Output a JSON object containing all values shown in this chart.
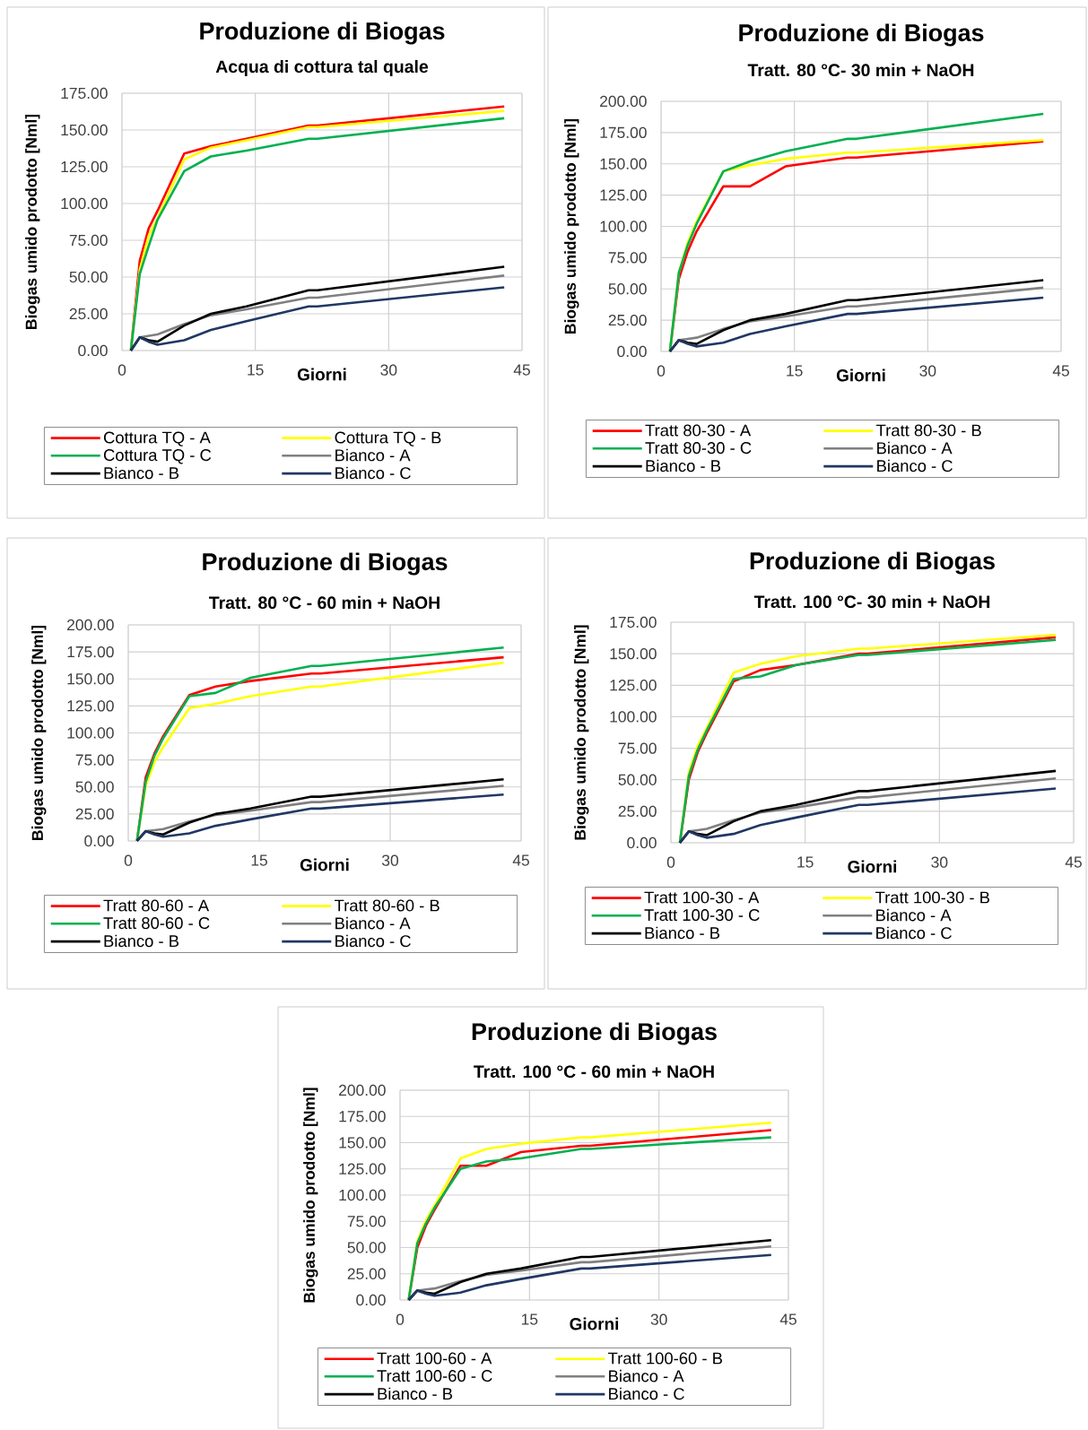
{
  "chart_data": [
    {
      "type": "line",
      "title": "Produzione di Biogas",
      "subtitle": "Acqua di cottura tal quale",
      "xlabel": "Giorni",
      "ylabel": "Biogas umido prodotto [Nml]",
      "x": [
        1,
        2,
        3,
        4,
        7,
        10,
        14,
        21,
        22,
        43
      ],
      "xlim": [
        0,
        45
      ],
      "xticks": [
        0,
        15,
        30,
        45
      ],
      "ylim": [
        0,
        175
      ],
      "yticks": [
        {
          "value": 0,
          "label": "0.00"
        },
        {
          "value": 25,
          "label": "25.00"
        },
        {
          "value": 50,
          "label": "50.00"
        },
        {
          "value": 75,
          "label": "75.00"
        },
        {
          "value": 100,
          "label": "100.00"
        },
        {
          "value": 125,
          "label": "125.00"
        },
        {
          "value": 150,
          "label": "150.00"
        },
        {
          "value": 175,
          "label": "175.00"
        }
      ],
      "grid": true,
      "legend": "bottom",
      "series": [
        {
          "name": "Cottura TQ - A",
          "color": "#ff0000",
          "values": [
            0,
            61,
            83,
            95,
            134,
            139,
            144,
            153,
            153,
            166
          ]
        },
        {
          "name": "Cottura TQ - B",
          "color": "#ffff00",
          "values": [
            0,
            55,
            78,
            90,
            130,
            138,
            143,
            152,
            152,
            163
          ]
        },
        {
          "name": "Cottura TQ - C",
          "color": "#00b050",
          "values": [
            0,
            52,
            71,
            89,
            122,
            132,
            136,
            144,
            144,
            158
          ]
        },
        {
          "name": "Bianco - A",
          "color": "#808080",
          "values": [
            0,
            9,
            10,
            11,
            18,
            24,
            28,
            36,
            36,
            51
          ]
        },
        {
          "name": "Bianco - B",
          "color": "#000000",
          "values": [
            0,
            9,
            7,
            6,
            17,
            25,
            30,
            41,
            41,
            57
          ]
        },
        {
          "name": "Bianco - C",
          "color": "#203864",
          "values": [
            0,
            9,
            6,
            4,
            7,
            14,
            20,
            30,
            30,
            43
          ]
        }
      ]
    },
    {
      "type": "line",
      "title": "Produzione di Biogas",
      "subtitle": "Tratt. 80 °C- 30 min + NaOH",
      "xlabel": "Giorni",
      "ylabel": "Biogas umido prodotto [Nml]",
      "x": [
        1,
        2,
        3,
        4,
        7,
        10,
        14,
        21,
        22,
        43
      ],
      "xlim": [
        0,
        45
      ],
      "xticks": [
        0,
        15,
        30,
        45
      ],
      "ylim": [
        0,
        200
      ],
      "yticks": [
        {
          "value": 0,
          "label": "0.00"
        },
        {
          "value": 25,
          "label": "25.00"
        },
        {
          "value": 50,
          "label": "50.00"
        },
        {
          "value": 75,
          "label": "75.00"
        },
        {
          "value": 100,
          "label": "100.00"
        },
        {
          "value": 125,
          "label": "125.00"
        },
        {
          "value": 150,
          "label": "150.00"
        },
        {
          "value": 175,
          "label": "175.00"
        },
        {
          "value": 200,
          "label": "200.00"
        }
      ],
      "grid": true,
      "legend": "bottom",
      "series": [
        {
          "name": "Tratt 80-30 - A",
          "color": "#ff0000",
          "values": [
            0,
            58,
            80,
            96,
            132,
            132,
            148,
            155,
            155,
            168
          ]
        },
        {
          "name": "Tratt 80-30 - B",
          "color": "#ffff00",
          "values": [
            0,
            63,
            87,
            104,
            144,
            149,
            154,
            159,
            159,
            169
          ]
        },
        {
          "name": "Tratt 80-30 - C",
          "color": "#00b050",
          "values": [
            0,
            63,
            85,
            102,
            144,
            152,
            160,
            170,
            170,
            190
          ]
        },
        {
          "name": "Bianco - A",
          "color": "#808080",
          "values": [
            0,
            9,
            10,
            11,
            18,
            24,
            28,
            36,
            36,
            51
          ]
        },
        {
          "name": "Bianco - B",
          "color": "#000000",
          "values": [
            0,
            9,
            7,
            6,
            17,
            25,
            30,
            41,
            41,
            57
          ]
        },
        {
          "name": "Bianco - C",
          "color": "#203864",
          "values": [
            0,
            9,
            6,
            4,
            7,
            14,
            20,
            30,
            30,
            43
          ]
        }
      ]
    },
    {
      "type": "line",
      "title": "Produzione di Biogas",
      "subtitle": "Tratt. 80 °C - 60 min + NaOH",
      "xlabel": "Giorni",
      "ylabel": "Biogas umido prodotto [Nml]",
      "x": [
        1,
        2,
        3,
        4,
        7,
        10,
        14,
        21,
        22,
        43
      ],
      "xlim": [
        0,
        45
      ],
      "xticks": [
        0,
        15,
        30,
        45
      ],
      "ylim": [
        0,
        200
      ],
      "yticks": [
        {
          "value": 0,
          "label": "0.00"
        },
        {
          "value": 25,
          "label": "25.00"
        },
        {
          "value": 50,
          "label": "50.00"
        },
        {
          "value": 75,
          "label": "75.00"
        },
        {
          "value": 100,
          "label": "100.00"
        },
        {
          "value": 125,
          "label": "125.00"
        },
        {
          "value": 150,
          "label": "150.00"
        },
        {
          "value": 175,
          "label": "175.00"
        },
        {
          "value": 200,
          "label": "200.00"
        }
      ],
      "grid": true,
      "legend": "bottom",
      "series": [
        {
          "name": "Tratt 80-60 - A",
          "color": "#ff0000",
          "values": [
            0,
            59,
            81,
            97,
            135,
            143,
            148,
            155,
            155,
            170
          ]
        },
        {
          "name": "Tratt 80-60 - B",
          "color": "#ffff00",
          "values": [
            0,
            51,
            73,
            87,
            123,
            127,
            134,
            143,
            143,
            165
          ]
        },
        {
          "name": "Tratt 80-60 - C",
          "color": "#00b050",
          "values": [
            0,
            55,
            79,
            95,
            134,
            137,
            151,
            162,
            162,
            179
          ]
        },
        {
          "name": "Bianco - A",
          "color": "#808080",
          "values": [
            0,
            9,
            10,
            11,
            18,
            24,
            28,
            36,
            36,
            51
          ]
        },
        {
          "name": "Bianco - B",
          "color": "#000000",
          "values": [
            0,
            9,
            7,
            6,
            17,
            25,
            30,
            41,
            41,
            57
          ]
        },
        {
          "name": "Bianco - C",
          "color": "#203864",
          "values": [
            0,
            9,
            6,
            4,
            7,
            14,
            20,
            30,
            30,
            43
          ]
        }
      ]
    },
    {
      "type": "line",
      "title": "Produzione di Biogas",
      "subtitle": "Tratt. 100 °C- 30 min + NaOH",
      "xlabel": "Giorni",
      "ylabel": "Biogas umido prodotto [Nml]",
      "x": [
        1,
        2,
        3,
        4,
        7,
        10,
        14,
        21,
        22,
        43
      ],
      "xlim": [
        0,
        45
      ],
      "xticks": [
        0,
        15,
        30,
        45
      ],
      "ylim": [
        0,
        175
      ],
      "yticks": [
        {
          "value": 0,
          "label": "0.00"
        },
        {
          "value": 25,
          "label": "25.00"
        },
        {
          "value": 50,
          "label": "50.00"
        },
        {
          "value": 75,
          "label": "75.00"
        },
        {
          "value": 100,
          "label": "100.00"
        },
        {
          "value": 125,
          "label": "125.00"
        },
        {
          "value": 150,
          "label": "150.00"
        },
        {
          "value": 175,
          "label": "175.00"
        }
      ],
      "grid": true,
      "legend": "bottom",
      "series": [
        {
          "name": "Tratt 100-30 - A",
          "color": "#ff0000",
          "values": [
            0,
            50,
            72,
            87,
            128,
            137,
            141,
            150,
            150,
            163
          ]
        },
        {
          "name": "Tratt 100-30 - B",
          "color": "#ffff00",
          "values": [
            0,
            56,
            77,
            91,
            135,
            142,
            148,
            154,
            154,
            165
          ]
        },
        {
          "name": "Tratt 100-30 - C",
          "color": "#00b050",
          "values": [
            0,
            53,
            74,
            89,
            130,
            132,
            141,
            149,
            149,
            161
          ]
        },
        {
          "name": "Bianco - A",
          "color": "#808080",
          "values": [
            0,
            9,
            10,
            11,
            18,
            24,
            28,
            36,
            36,
            51
          ]
        },
        {
          "name": "Bianco - B",
          "color": "#000000",
          "values": [
            0,
            9,
            7,
            6,
            17,
            25,
            30,
            41,
            41,
            57
          ]
        },
        {
          "name": "Bianco - C",
          "color": "#203864",
          "values": [
            0,
            9,
            6,
            4,
            7,
            14,
            20,
            30,
            30,
            43
          ]
        }
      ]
    },
    {
      "type": "line",
      "title": "Produzione di Biogas",
      "subtitle": "Tratt. 100 °C - 60 min + NaOH",
      "xlabel": "Giorni",
      "ylabel": "Biogas umido prodotto [Nml]",
      "x": [
        1,
        2,
        3,
        4,
        7,
        10,
        14,
        21,
        22,
        43
      ],
      "xlim": [
        0,
        45
      ],
      "xticks": [
        0,
        15,
        30,
        45
      ],
      "ylim": [
        0,
        200
      ],
      "yticks": [
        {
          "value": 0,
          "label": "0.00"
        },
        {
          "value": 25,
          "label": "25.00"
        },
        {
          "value": 50,
          "label": "50.00"
        },
        {
          "value": 75,
          "label": "75.00"
        },
        {
          "value": 100,
          "label": "100.00"
        },
        {
          "value": 125,
          "label": "125.00"
        },
        {
          "value": 150,
          "label": "150.00"
        },
        {
          "value": 175,
          "label": "175.00"
        },
        {
          "value": 200,
          "label": "200.00"
        }
      ],
      "grid": true,
      "legend": "bottom",
      "series": [
        {
          "name": "Tratt 100-60 - A",
          "color": "#ff0000",
          "values": [
            0,
            50,
            71,
            86,
            128,
            128,
            141,
            147,
            147,
            162
          ]
        },
        {
          "name": "Tratt 100-60 - B",
          "color": "#ffff00",
          "values": [
            0,
            56,
            76,
            90,
            135,
            144,
            149,
            155,
            155,
            169
          ]
        },
        {
          "name": "Tratt 100-60 - C",
          "color": "#00b050",
          "values": [
            0,
            54,
            73,
            88,
            125,
            132,
            135,
            144,
            144,
            155
          ]
        },
        {
          "name": "Bianco - A",
          "color": "#808080",
          "values": [
            0,
            9,
            10,
            11,
            18,
            24,
            28,
            36,
            36,
            51
          ]
        },
        {
          "name": "Bianco - B",
          "color": "#000000",
          "values": [
            0,
            9,
            7,
            6,
            17,
            25,
            30,
            41,
            41,
            57
          ]
        },
        {
          "name": "Bianco - C",
          "color": "#203864",
          "values": [
            0,
            9,
            6,
            4,
            7,
            14,
            20,
            30,
            30,
            43
          ]
        }
      ]
    }
  ]
}
